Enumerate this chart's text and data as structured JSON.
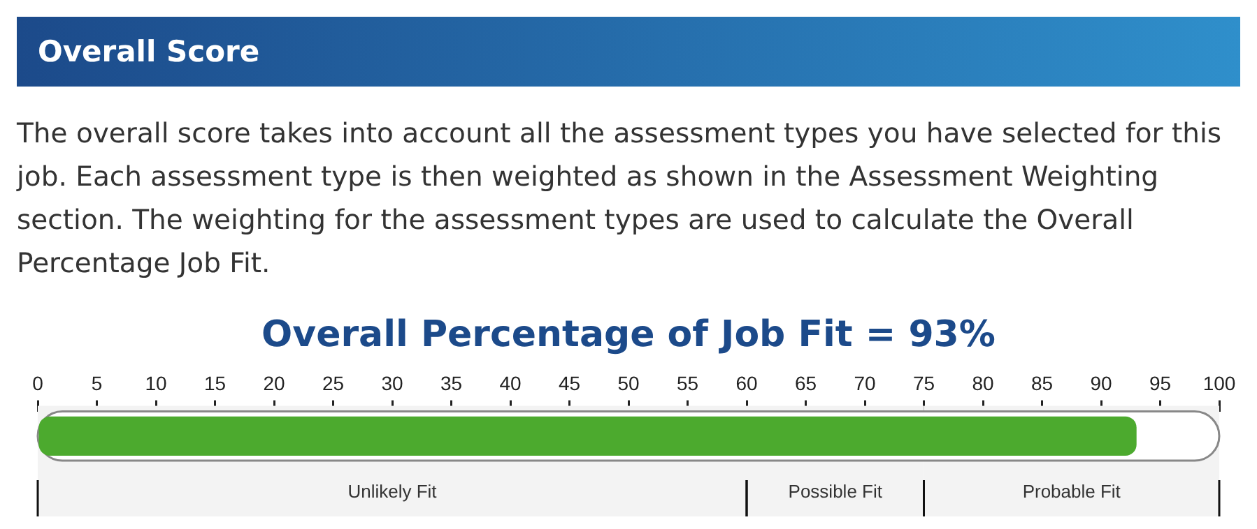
{
  "chart_data": {
    "type": "bar",
    "orientation": "horizontal",
    "title": "Overall Percentage of Job Fit = 93%",
    "annotations": [
      "Overall Score",
      "The overall score takes into account all the assessment types you have selected for this job. Each assessment type is then weighted as shown in the Assessment Weighting section. The weighting for the assessment types are used to calculate the Overall Percentage Job Fit."
    ],
    "categories": [
      null
    ],
    "values": [
      93
    ],
    "color": "#4caa2e",
    "xlim": [
      0,
      100
    ],
    "xticks": [
      0,
      5,
      10,
      15,
      20,
      25,
      30,
      35,
      40,
      45,
      50,
      55,
      60,
      65,
      70,
      75,
      80,
      85,
      90,
      95,
      100
    ],
    "tick_labels": "x",
    "bands": [
      {
        "axis": "x",
        "from": 0,
        "to": 60,
        "label": "Unlikely Fit"
      },
      {
        "axis": "x",
        "from": 60,
        "to": 75,
        "label": "Possible Fit"
      },
      {
        "axis": "x",
        "from": 75,
        "to": 100,
        "label": "Probable Fit"
      }
    ]
  }
}
